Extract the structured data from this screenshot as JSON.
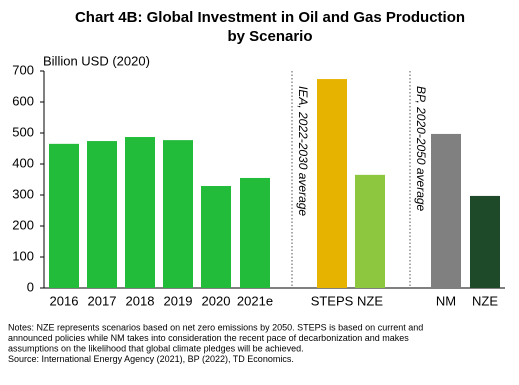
{
  "chart_data": {
    "type": "bar",
    "title": [
      "Chart 4B: Global Investment in Oil and Gas Production",
      "by Scenario"
    ],
    "y_label": "Billion USD (2020)",
    "categories": [
      "2016",
      "2017",
      "2018",
      "2019",
      "2020",
      "2021e",
      "STEPS",
      "NZE",
      "NM",
      "NZE"
    ],
    "values": [
      465,
      474,
      487,
      477,
      329,
      355,
      674,
      365,
      497,
      297
    ],
    "colors": [
      "#22bb3a",
      "#22bb3a",
      "#22bb3a",
      "#22bb3a",
      "#22bb3a",
      "#22bb3a",
      "#e6b400",
      "#8dc63f",
      "#808080",
      "#1e4a2a"
    ],
    "ylim": [
      0,
      700
    ],
    "yticks": [
      0,
      100,
      200,
      300,
      400,
      500,
      600,
      700
    ],
    "grid": false,
    "annotations": [
      "IEA, 2022-2030 average",
      "BP, 2020-2050 average"
    ],
    "notes": [
      "Notes: NZE represents scenarios based on net zero emissions by 2050. STEPS is based on current and",
      "announced policies while NM takes  into consideration the recent pace of decarbonization and makes",
      "assumptions on the likelihood that global climate pledges will be achieved.",
      "Source: International Energy Agency (2021), BP (2022), TD Economics."
    ]
  }
}
